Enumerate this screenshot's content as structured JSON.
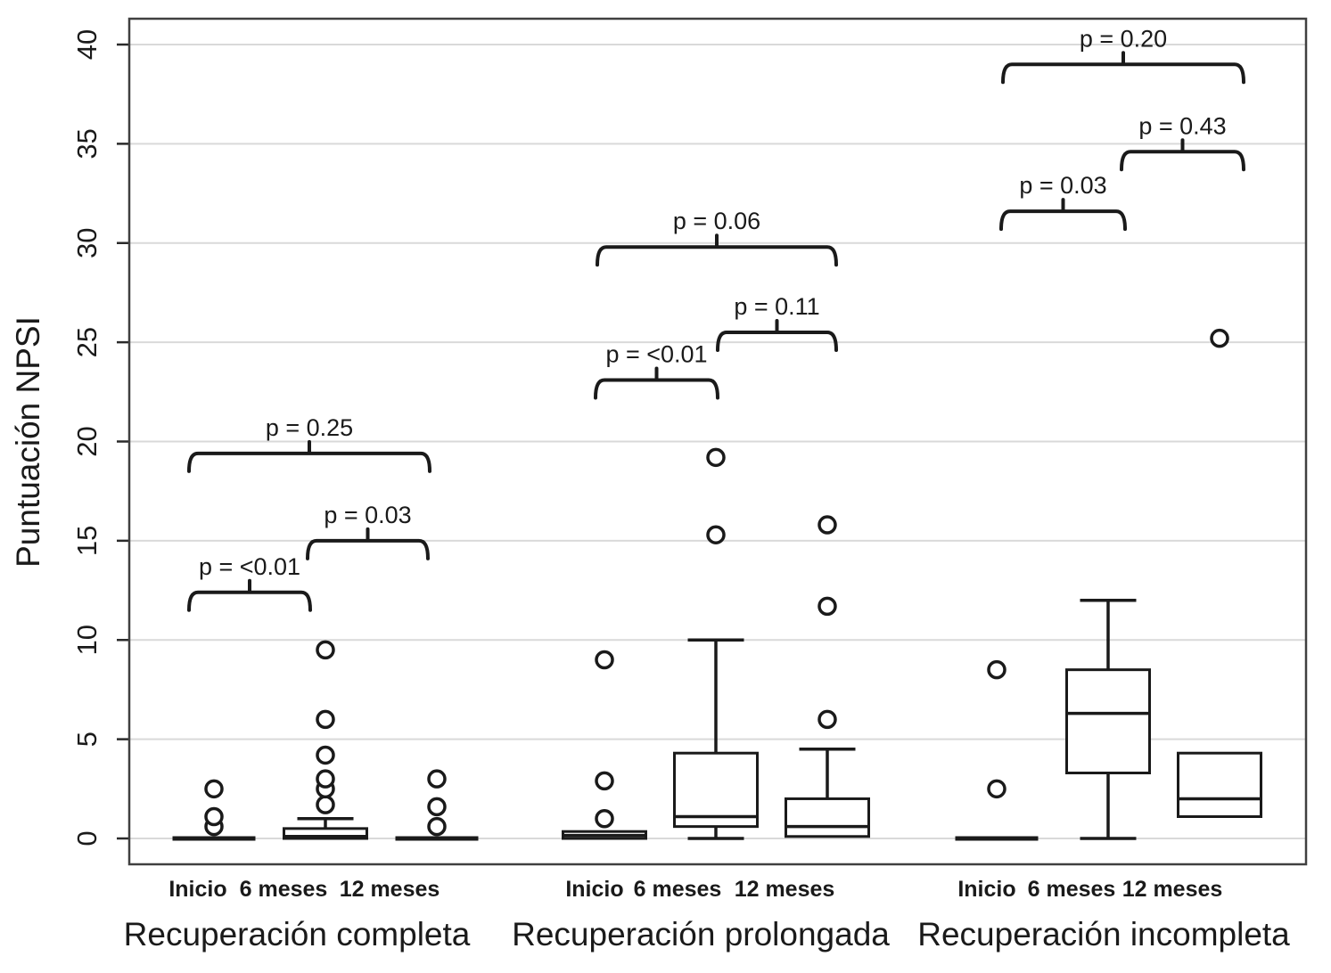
{
  "figure": {
    "background": "#ffffff",
    "ink_color": "#1a1a1a",
    "frame_color": "#404040",
    "grid_color": "#d9d9d9"
  },
  "chart_data": {
    "type": "boxplot",
    "title": "",
    "ylabel": "Puntuación NPSI",
    "xlabel": "",
    "ylim": [
      0,
      40
    ],
    "yticks": [
      0,
      5,
      10,
      15,
      20,
      25,
      30,
      35,
      40
    ],
    "grid": "horizontal-light",
    "legend": "none",
    "timepoints": [
      "Inicio",
      "6 meses",
      "12 meses"
    ],
    "groups": [
      {
        "label": "Recuperación completa",
        "boxes": [
          {
            "timepoint": "Inicio",
            "q1": 0,
            "median": 0,
            "q3": 0,
            "whisker_low": null,
            "whisker_high": null,
            "outliers": [
              0.6,
              1.1,
              2.5
            ]
          },
          {
            "timepoint": "6 meses",
            "q1": 0,
            "median": 0.1,
            "q3": 0.5,
            "whisker_low": null,
            "whisker_high": 1.0,
            "outliers": [
              1.7,
              2.5,
              3.0,
              4.2,
              6.0,
              9.5
            ]
          },
          {
            "timepoint": "12 meses",
            "q1": 0,
            "median": 0,
            "q3": 0,
            "whisker_low": null,
            "whisker_high": null,
            "outliers": [
              0.6,
              1.6,
              3.0
            ]
          }
        ],
        "comparisons": [
          {
            "label": "p = <0.01",
            "from": 0,
            "to": 1,
            "y": 12.4
          },
          {
            "label": "p = 0.03",
            "from": 1,
            "to": 2,
            "y": 15.0
          },
          {
            "label": "p = 0.25",
            "from": 0,
            "to": 2,
            "y": 19.4
          }
        ]
      },
      {
        "label": "Recuperación prolongada",
        "boxes": [
          {
            "timepoint": "Inicio",
            "q1": 0,
            "median": 0.15,
            "q3": 0.35,
            "whisker_low": null,
            "whisker_high": null,
            "outliers": [
              1.0,
              2.9,
              9.0
            ]
          },
          {
            "timepoint": "6 meses",
            "q1": 0.6,
            "median": 1.1,
            "q3": 4.3,
            "whisker_low": 0,
            "whisker_high": 10.0,
            "outliers": [
              15.3,
              19.2
            ]
          },
          {
            "timepoint": "12 meses",
            "q1": 0.1,
            "median": 0.6,
            "q3": 2.0,
            "whisker_low": null,
            "whisker_high": 4.5,
            "outliers": [
              6.0,
              11.7,
              15.8
            ]
          }
        ],
        "comparisons": [
          {
            "label": "p = <0.01",
            "from": 0,
            "to": 1,
            "y": 23.1
          },
          {
            "label": "p = 0.11",
            "from": 1,
            "to": 2,
            "y": 25.5
          },
          {
            "label": "p = 0.06",
            "from": 0,
            "to": 2,
            "y": 29.8
          }
        ]
      },
      {
        "label": "Recuperación incompleta",
        "boxes": [
          {
            "timepoint": "Inicio",
            "q1": 0,
            "median": 0,
            "q3": 0,
            "whisker_low": null,
            "whisker_high": null,
            "outliers": [
              2.5,
              8.5
            ]
          },
          {
            "timepoint": "6 meses",
            "q1": 3.3,
            "median": 6.3,
            "q3": 8.5,
            "whisker_low": 0,
            "whisker_high": 12.0,
            "outliers": []
          },
          {
            "timepoint": "12 meses",
            "q1": 1.1,
            "median": 2.0,
            "q3": 4.3,
            "whisker_low": null,
            "whisker_high": null,
            "outliers": [
              25.2
            ]
          }
        ],
        "comparisons": [
          {
            "label": "p = 0.03",
            "from": 0,
            "to": 1,
            "y": 31.6
          },
          {
            "label": "p = 0.43",
            "from": 1,
            "to": 2,
            "y": 34.6
          },
          {
            "label": "p = 0.20",
            "from": 0,
            "to": 2,
            "y": 39.0
          }
        ]
      }
    ]
  }
}
